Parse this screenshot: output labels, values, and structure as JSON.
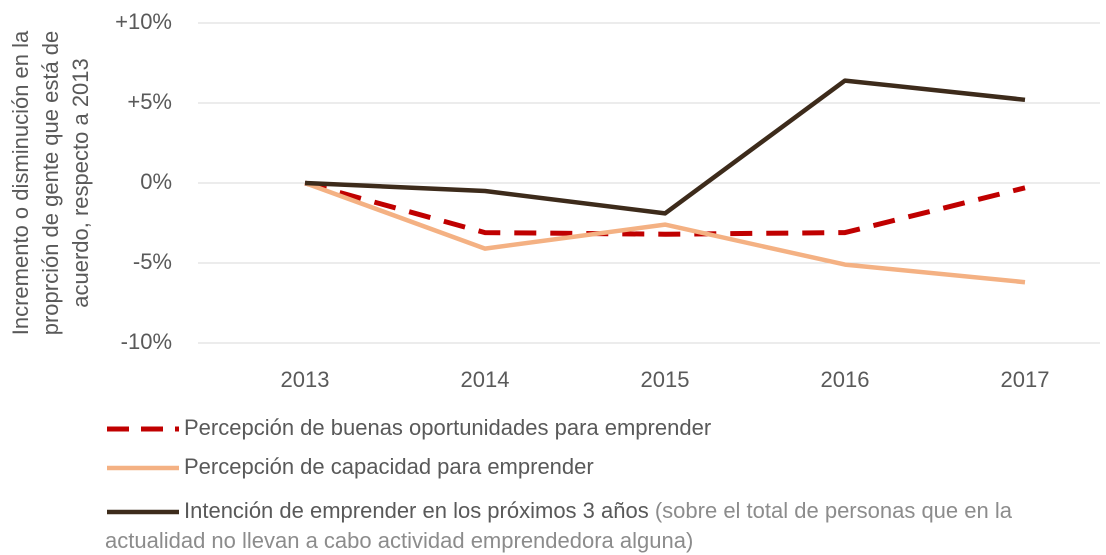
{
  "chart_data": {
    "type": "line",
    "ylabel": [
      "Incremento o disminución en la",
      "proprción de gente que está de",
      "acuerdo, respecto a 2013"
    ],
    "categories": [
      "2013",
      "2014",
      "2015",
      "2016",
      "2017"
    ],
    "series": [
      {
        "name": "Percepción de buenas oportunidades para emprender",
        "color": "#c00000",
        "dash": true,
        "values": [
          0,
          -3.1,
          -3.2,
          -3.1,
          -0.3
        ]
      },
      {
        "name": "Percepción de capacidad para emprender",
        "color": "#f4b183",
        "dash": false,
        "values": [
          0,
          -4.1,
          -2.6,
          -5.1,
          -6.2
        ]
      },
      {
        "name": "Intención de emprender en los próximos 3 años",
        "note": "(sobre el total de personas que en la actualidad no llevan a cabo actividad emprendedora alguna)",
        "color": "#3d2b1b",
        "dash": false,
        "values": [
          0,
          -0.5,
          -1.9,
          6.4,
          5.2
        ]
      }
    ],
    "ylim": [
      -10,
      10
    ],
    "yticks": [
      {
        "value": 10,
        "label": "+10%"
      },
      {
        "value": 5,
        "label": "+5%"
      },
      {
        "value": 0,
        "label": "0%"
      },
      {
        "value": -5,
        "label": "-5%"
      },
      {
        "value": -10,
        "label": "-10%"
      }
    ],
    "grid": true
  }
}
